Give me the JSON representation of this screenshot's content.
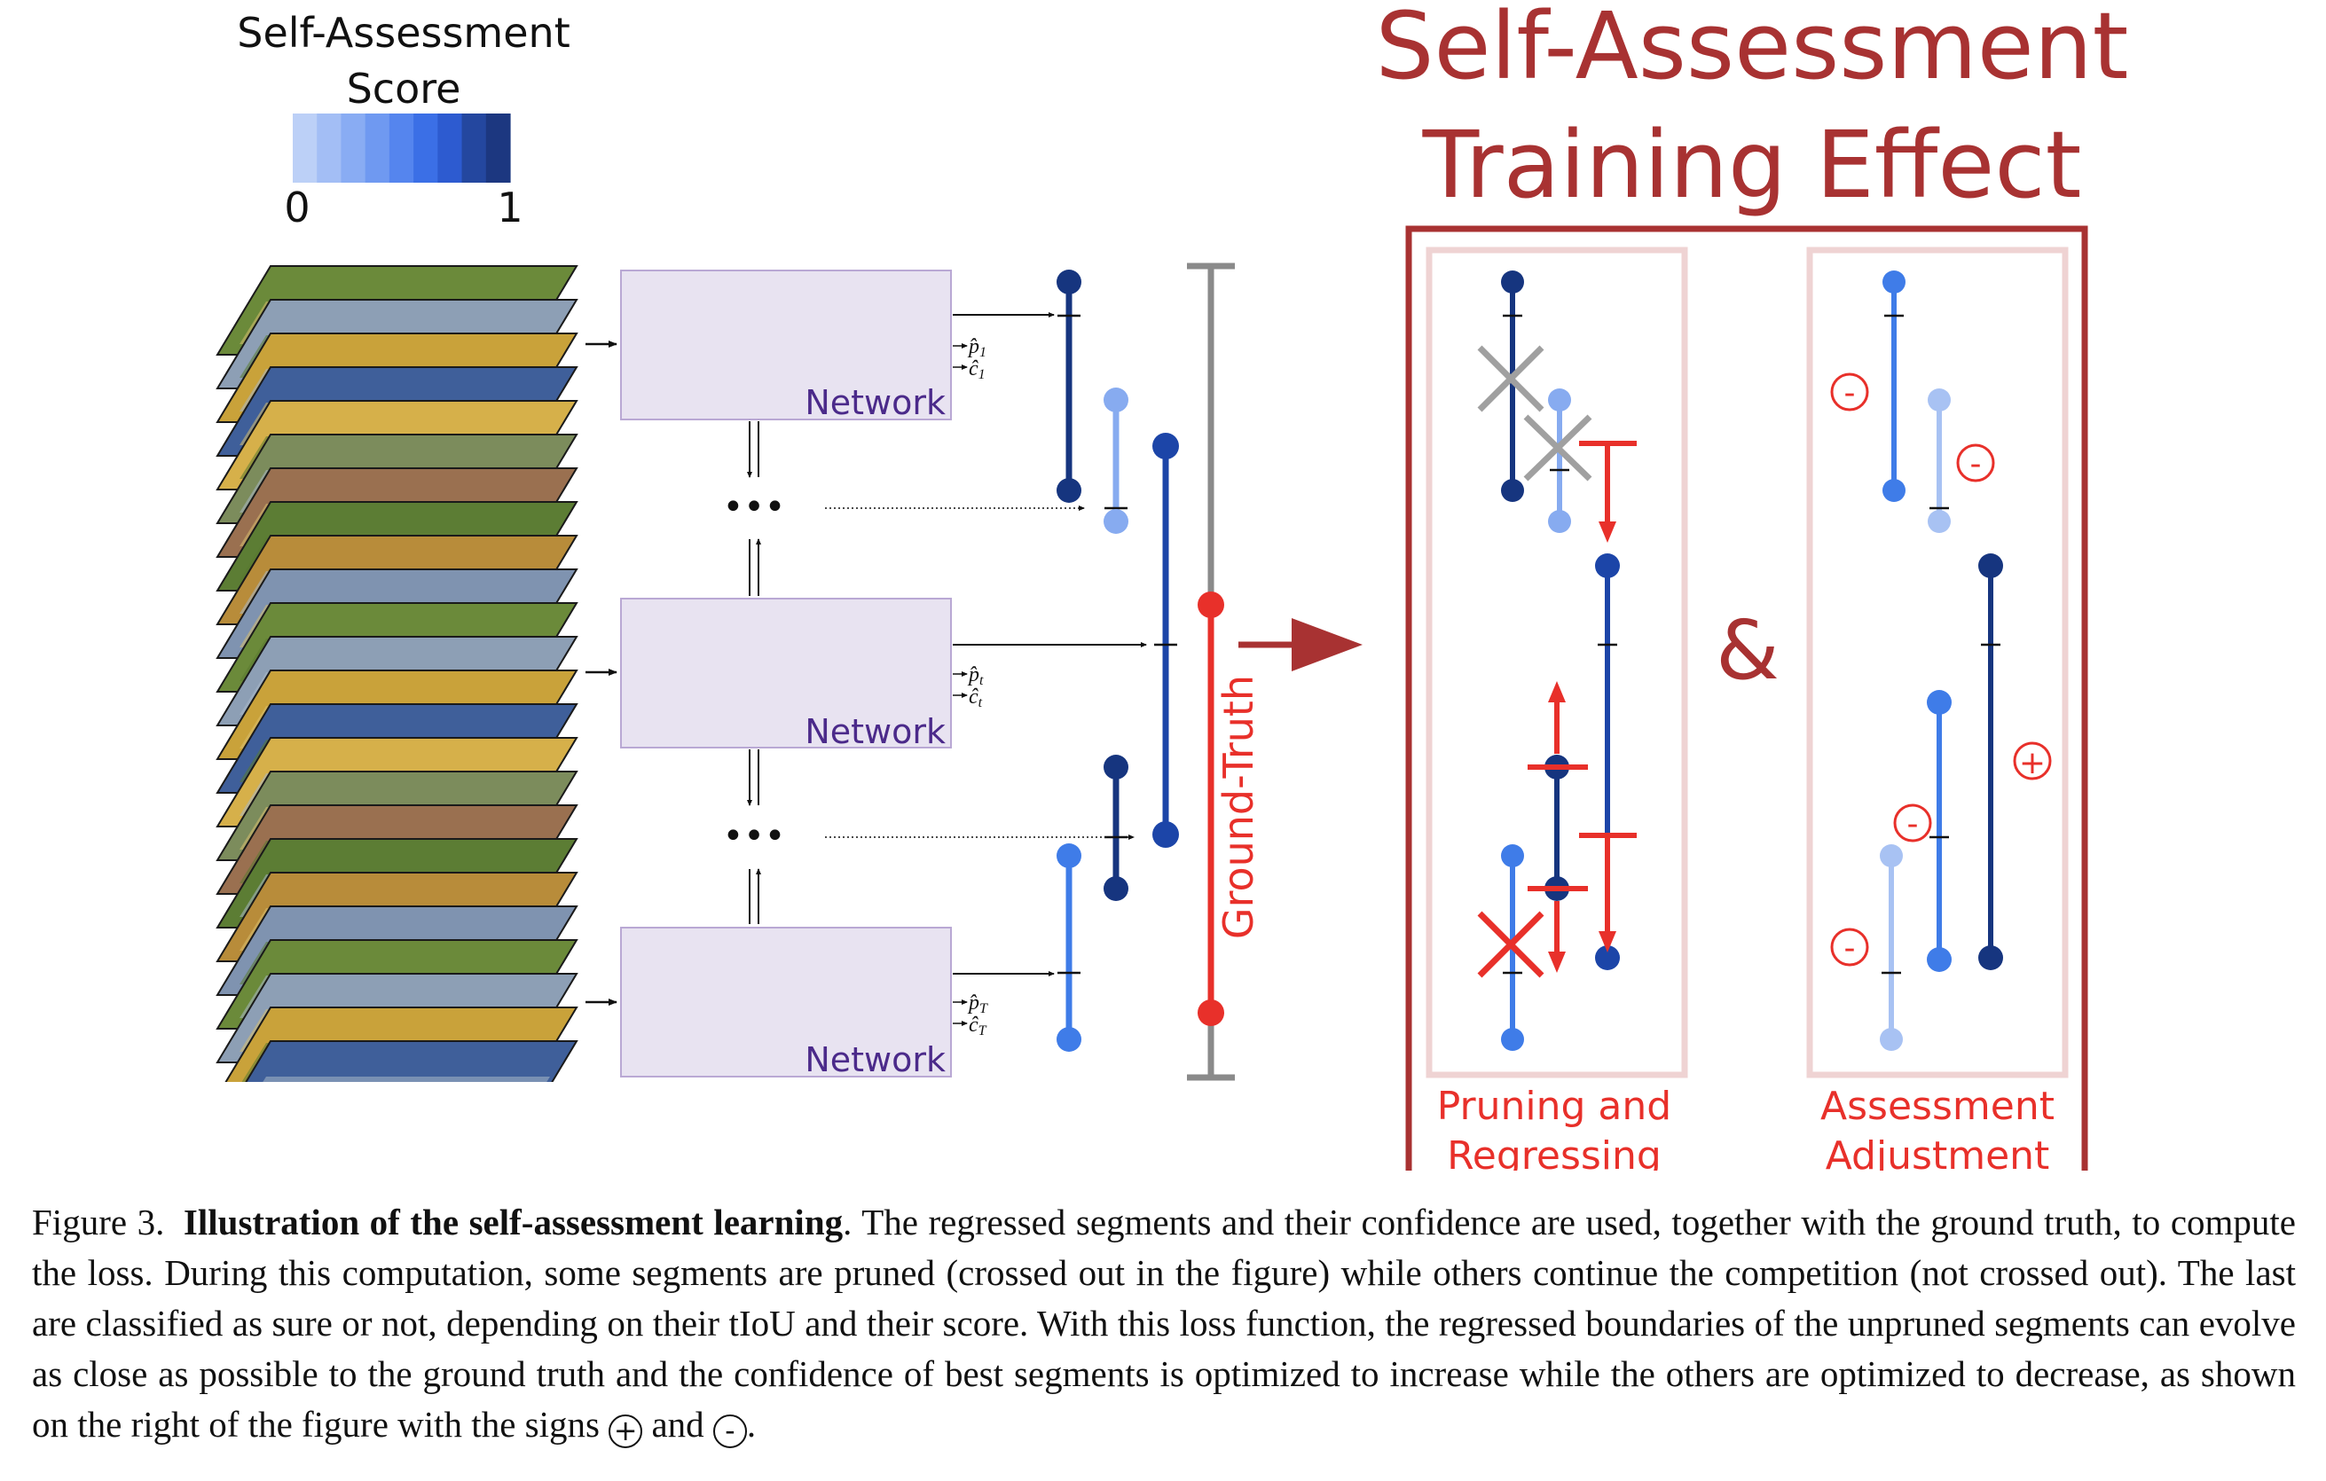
{
  "legend": {
    "title_line1": "Self-Assessment",
    "title_line2": "Score",
    "min_label": "0",
    "max_label": "1",
    "colors": [
      "#bcd0f7",
      "#a3bef5",
      "#89acf3",
      "#6f99f1",
      "#5585ee",
      "#3b6fe6",
      "#2d5bd0",
      "#24479f",
      "#1c3780"
    ]
  },
  "network": {
    "label": "Network",
    "outputs": [
      {
        "p": "p̂",
        "p_sub": "1",
        "c": "ĉ",
        "c_sub": "1"
      },
      {
        "p": "p̂",
        "p_sub": "t",
        "c": "ĉ",
        "c_sub": "t"
      },
      {
        "p": "p̂",
        "p_sub": "T",
        "c": "ĉ",
        "c_sub": "T"
      }
    ],
    "ellipsis": "•••"
  },
  "ground_truth_label": "Ground-Truth",
  "effect_title_line1": "Self-Assessment",
  "effect_title_line2": "Training Effect",
  "ampersand": "&",
  "panels": {
    "pruning_line1": "Pruning and",
    "pruning_line2": "Regressing",
    "assessment_line1": "Assessment",
    "assessment_line2": "Adjustment"
  },
  "signs": {
    "minus": "-",
    "plus": "+"
  },
  "colors": {
    "dark_red": "#a83232",
    "red": "#e8302a",
    "gray": "#8a8a8a",
    "panel_border": "#efd3d3",
    "network_fill": "#e8e3f1",
    "network_border": "#b9a8d4",
    "network_label": "#4b2a8a",
    "navy": "#16357f",
    "mid_blue": "#2f67e0",
    "light_blue": "#87abf0"
  },
  "caption": {
    "figure_label": "Figure 3.",
    "bold_title": "Illustration of the self-assessment learning",
    "text": ". The regressed segments and their confidence are used, together with the ground truth, to compute the loss. During this computation, some segments are pruned (crossed out in the figure) while others continue the competition (not crossed out). The last are classified as sure or not, depending on their tIoU and their score. With this loss function, the regressed boundaries of the unpruned segments can evolve as close as possible to the ground truth and the confidence of best segments is optimized to increase while the others are optimized to decrease, as shown on the right of the figure with the signs",
    "and_word": "and",
    "end": "."
  }
}
